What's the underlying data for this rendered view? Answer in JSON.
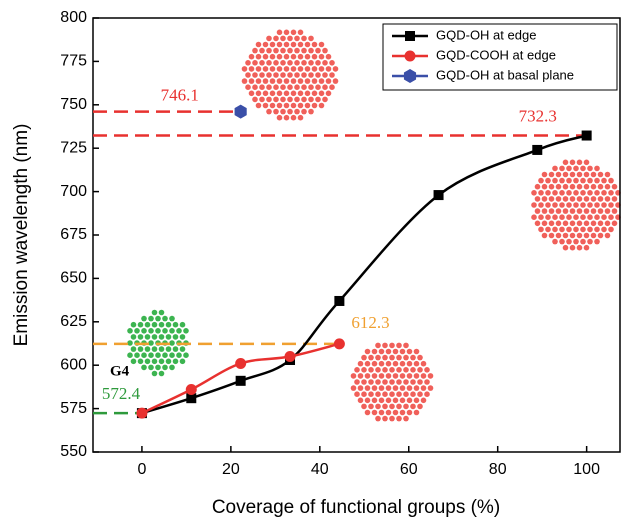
{
  "chart_data": {
    "type": "line",
    "xlabel": "Coverage of functional groups (%)",
    "ylabel": "Emission wavelength (nm)",
    "xlim": [
      -11,
      107.5
    ],
    "xticks": [
      0,
      20,
      40,
      60,
      80,
      100
    ],
    "ylim": [
      550,
      800
    ],
    "yticks": [
      550,
      575,
      600,
      625,
      650,
      675,
      700,
      725,
      750,
      775,
      800
    ],
    "series": [
      {
        "name": "GQD-OH at edge",
        "color": "#000000",
        "marker": "square",
        "smooth": true,
        "x": [
          0,
          11.1,
          22.2,
          33.3,
          44.4,
          66.7,
          88.9,
          100
        ],
        "values": [
          572.4,
          581,
          591,
          603,
          637,
          698,
          724,
          732.3
        ]
      },
      {
        "name": "GQD-COOH at edge",
        "color": "#e8312f",
        "marker": "circle",
        "smooth": true,
        "x": [
          0,
          11.1,
          22.2,
          33.3,
          44.4
        ],
        "values": [
          572.4,
          586,
          601,
          605,
          612.3
        ]
      },
      {
        "name": "GQD-OH at basal plane",
        "color": "#3a4fa8",
        "marker": "hexagon",
        "smooth": false,
        "x": [
          22.2
        ],
        "values": [
          746.1
        ]
      }
    ],
    "annotations": [
      {
        "label": "746.1",
        "value": 746.1,
        "x": 22.2,
        "color": "#e8312f"
      },
      {
        "label": "732.3",
        "value": 732.3,
        "x": 100,
        "color": "#e8312f"
      },
      {
        "label": "612.3",
        "value": 612.3,
        "x": 44.4,
        "color": "#f0a030"
      },
      {
        "label": "572.4",
        "value": 572.4,
        "x": 0,
        "color": "#2e9a3c"
      }
    ],
    "note": "G4",
    "legend": "upper right"
  }
}
